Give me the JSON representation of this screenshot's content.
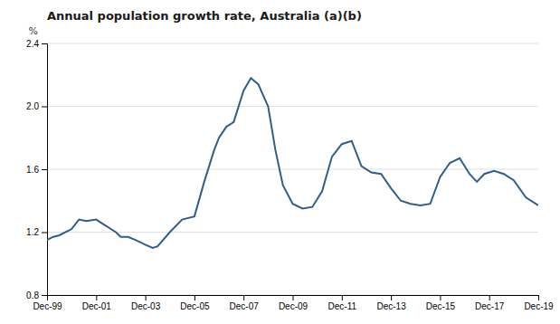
{
  "chart_data": {
    "type": "line",
    "title": "Annual population growth rate, Australia (a)(b)",
    "ylabel": "%",
    "color": "#2E5F8A",
    "grid": true,
    "xlim": [
      0,
      20
    ],
    "xticks": [
      {
        "value": 0,
        "label": "Dec-99"
      },
      {
        "value": 2,
        "label": "Dec-01"
      },
      {
        "value": 4,
        "label": "Dec-03"
      },
      {
        "value": 6,
        "label": "Dec-05"
      },
      {
        "value": 8,
        "label": "Dec-07"
      },
      {
        "value": 10,
        "label": "Dec-09"
      },
      {
        "value": 12,
        "label": "Dec-11"
      },
      {
        "value": 14,
        "label": "Dec-13"
      },
      {
        "value": 16,
        "label": "Dec-15"
      },
      {
        "value": 18,
        "label": "Dec-17"
      },
      {
        "value": 20,
        "label": "Dec-19"
      }
    ],
    "ylim": [
      0.8,
      2.4
    ],
    "yticks": [
      0.8,
      1.2,
      1.6,
      {
        "value": 2.0,
        "label": "2.0"
      },
      2.4
    ],
    "x": [
      0,
      0.25,
      0.5,
      1.0,
      1.3,
      1.6,
      2.0,
      2.3,
      2.6,
      2.8,
      3.0,
      3.3,
      3.6,
      4.0,
      4.3,
      4.5,
      5.0,
      5.5,
      6.0,
      6.4,
      6.8,
      7.0,
      7.3,
      7.6,
      8.0,
      8.3,
      8.6,
      9.0,
      9.3,
      9.6,
      10.0,
      10.4,
      10.8,
      11.2,
      11.6,
      12.0,
      12.4,
      12.8,
      13.2,
      13.6,
      14.0,
      14.4,
      14.8,
      15.2,
      15.6,
      16.0,
      16.4,
      16.8,
      17.2,
      17.5,
      17.8,
      18.2,
      18.6,
      19.0,
      19.5,
      20.0
    ],
    "values": [
      1.15,
      1.17,
      1.18,
      1.22,
      1.28,
      1.27,
      1.28,
      1.25,
      1.22,
      1.2,
      1.17,
      1.17,
      1.15,
      1.12,
      1.1,
      1.11,
      1.2,
      1.28,
      1.3,
      1.52,
      1.72,
      1.8,
      1.87,
      1.9,
      2.1,
      2.18,
      2.14,
      2.0,
      1.72,
      1.5,
      1.38,
      1.35,
      1.36,
      1.46,
      1.68,
      1.76,
      1.78,
      1.62,
      1.58,
      1.57,
      1.48,
      1.4,
      1.38,
      1.37,
      1.38,
      1.55,
      1.64,
      1.67,
      1.57,
      1.52,
      1.57,
      1.59,
      1.57,
      1.53,
      1.42,
      1.37
    ]
  }
}
